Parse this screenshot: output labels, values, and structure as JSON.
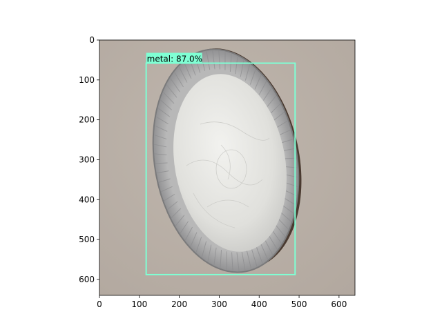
{
  "figure": {
    "x_ticks": [
      "0",
      "100",
      "200",
      "300",
      "400",
      "500",
      "600"
    ],
    "y_ticks": [
      "0",
      "100",
      "200",
      "300",
      "400",
      "500",
      "600"
    ],
    "image_extent": [
      0,
      640,
      640,
      0
    ]
  },
  "detection": {
    "label": "metal: 87.0%",
    "class": "metal",
    "confidence": 87.0,
    "box": {
      "x_min": 117,
      "y_min": 58,
      "x_max": 490,
      "y_max": 588
    },
    "color": "#7fffd4"
  },
  "scene": {
    "background_color": "#bfb6ad",
    "tray_color": "#a9a9aa",
    "foil_color": "#e4e3df"
  }
}
